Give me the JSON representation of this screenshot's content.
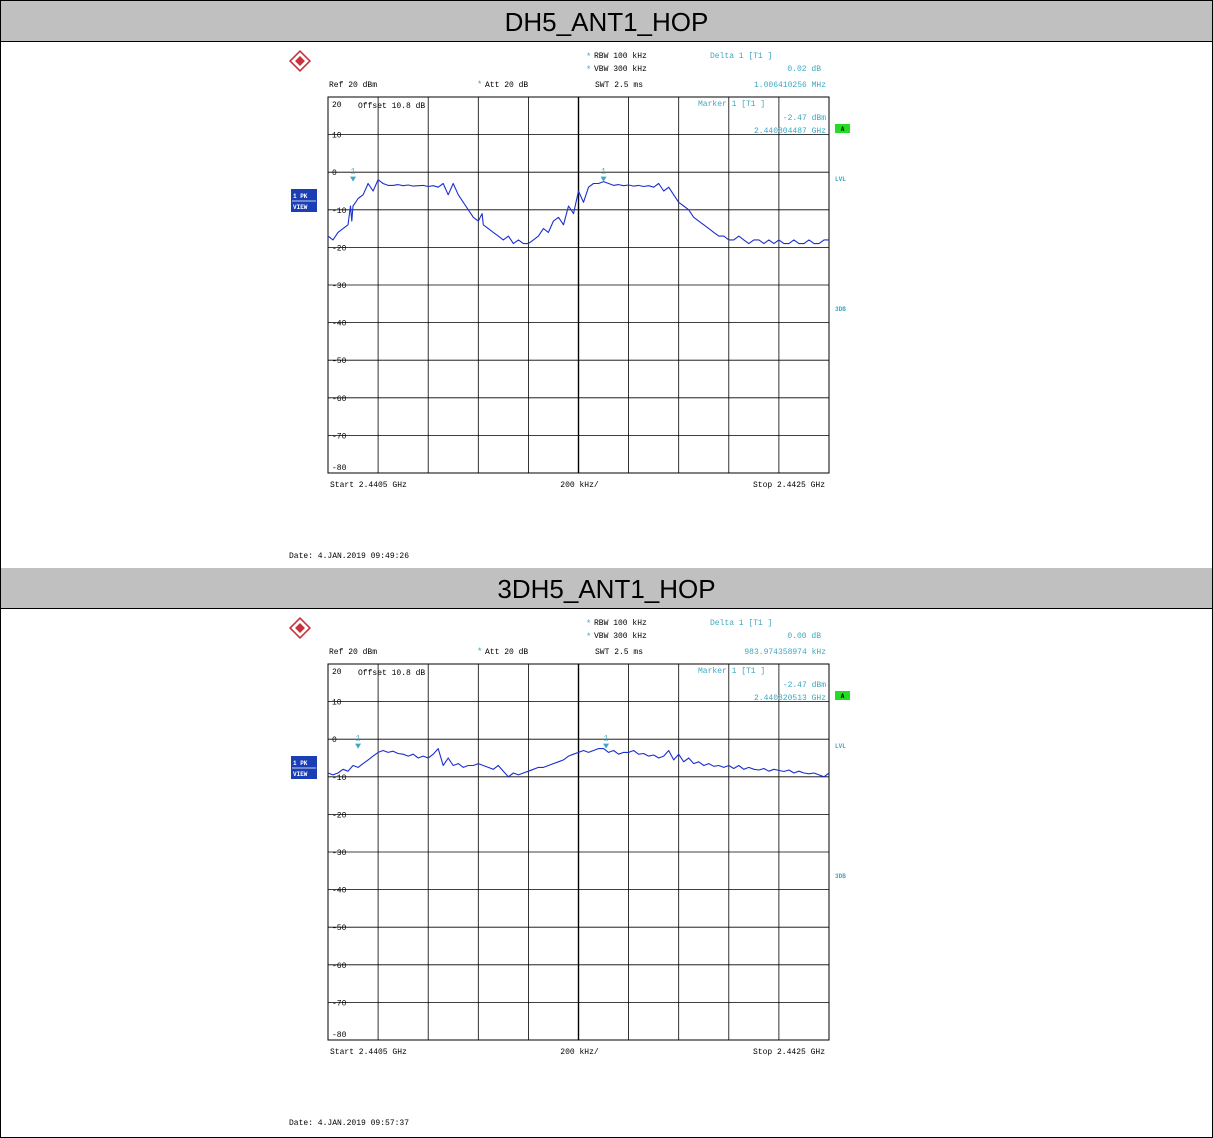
{
  "panels": [
    {
      "title": "DH5_ANT1_HOP",
      "settings": {
        "rbw": "RBW 100 kHz",
        "vbw": "VBW 300 kHz",
        "swt": "SWT 2.5 ms",
        "ref": "Ref  20 dBm",
        "att": "Att  20 dB",
        "offset": "Offset  10.8 dB",
        "trace_label_1": "1 PK",
        "trace_label_2": "VIEW",
        "badge_a": "A",
        "lvl": "LVL",
        "db3": "3DB",
        "star": "*"
      },
      "delta": {
        "label": "Delta 1 [T1 ]",
        "level": "0.02 dB",
        "freq": "1.006410256 MHz"
      },
      "marker": {
        "label": "Marker 1 [T1 ]",
        "level": "-2.47 dBm",
        "freq": "2.440804487 GHz"
      },
      "axis": {
        "start": "Start  2.4405 GHz",
        "span": "200 kHz/",
        "stop": "Stop  2.4425 GHz"
      },
      "y_ticks": [
        "20",
        "10",
        "0",
        "-10",
        "-20",
        "-30",
        "-40",
        "-50",
        "-60",
        "-70",
        "-80"
      ],
      "date": "Date: 4.JAN.2019  09:49:26",
      "chart_data": {
        "type": "line",
        "title": "DH5_ANT1_HOP",
        "xlabel": "",
        "ylabel": "",
        "xlim": [
          2.4405,
          2.4425
        ],
        "ylim": [
          -80,
          20
        ],
        "grid": true,
        "marker_labels": [
          "1",
          "1"
        ],
        "markers": [
          {
            "x": 2.4406,
            "y": -2.5
          },
          {
            "x": 2.4416,
            "y": -2.5
          }
        ],
        "series": [
          {
            "x": [
              2.4405,
              2.44052,
              2.44054,
              2.44056,
              2.44058,
              2.44059,
              2.440595,
              2.4406,
              2.44061,
              2.44062,
              2.44064,
              2.44066,
              2.44068,
              2.4407,
              2.44072,
              2.44074,
              2.44076,
              2.44078,
              2.4408,
              2.44082,
              2.44084,
              2.44086,
              2.44088,
              2.4409,
              2.44092,
              2.44094,
              2.44096,
              2.44098,
              2.441,
              2.44102,
              2.44104,
              2.44106,
              2.44108,
              2.4411,
              2.441115,
              2.44112,
              2.44114,
              2.44116,
              2.44118,
              2.4412,
              2.44122,
              2.44124,
              2.44126,
              2.44128,
              2.4413,
              2.44132,
              2.44134,
              2.44136,
              2.44138,
              2.4414,
              2.44142,
              2.44144,
              2.44146,
              2.44148,
              2.4415,
              2.44152,
              2.44154,
              2.44156,
              2.44158,
              2.4416,
              2.44162,
              2.44164,
              2.44166,
              2.44168,
              2.4417,
              2.44172,
              2.44174,
              2.44176,
              2.44178,
              2.4418,
              2.44182,
              2.44184,
              2.44186,
              2.44188,
              2.4419,
              2.44192,
              2.44194,
              2.44196,
              2.44198,
              2.442,
              2.44202,
              2.44204,
              2.44206,
              2.44208,
              2.4421,
              2.44212,
              2.44214,
              2.44216,
              2.44218,
              2.4422,
              2.44222,
              2.44224,
              2.44226,
              2.44228,
              2.4423,
              2.44232,
              2.44234,
              2.44236,
              2.44238,
              2.4424,
              2.44242,
              2.44244,
              2.44246,
              2.44248,
              2.4425
            ],
            "y": [
              -17,
              -18,
              -16,
              -15,
              -14,
              -9,
              -13,
              -9,
              -8,
              -7,
              -6,
              -3,
              -5,
              -2,
              -3,
              -3.5,
              -3.5,
              -3.3,
              -3.6,
              -3.4,
              -3.7,
              -3.6,
              -3.5,
              -3.8,
              -3.6,
              -4,
              -3,
              -6,
              -3,
              -6,
              -8,
              -10,
              -12,
              -13,
              -11,
              -14,
              -15,
              -16,
              -17,
              -18,
              -17,
              -19,
              -18,
              -19,
              -19,
              -18,
              -17,
              -15,
              -16,
              -13,
              -12,
              -14,
              -9,
              -11,
              -5,
              -8,
              -4,
              -3,
              -3,
              -2.5,
              -3,
              -3.5,
              -3.3,
              -3.6,
              -3.4,
              -3.7,
              -3.5,
              -3.8,
              -3.6,
              -4,
              -3,
              -5,
              -4,
              -6,
              -8,
              -9,
              -10,
              -12,
              -13,
              -14,
              -15,
              -16,
              -17,
              -17,
              -18,
              -18,
              -17,
              -18,
              -19,
              -18,
              -18,
              -19,
              -18,
              -19,
              -18,
              -19,
              -19,
              -18,
              -19,
              -19,
              -18,
              -19,
              -19,
              -18,
              -18
            ]
          }
        ]
      }
    },
    {
      "title": "3DH5_ANT1_HOP",
      "settings": {
        "rbw": "RBW 100 kHz",
        "vbw": "VBW 300 kHz",
        "swt": "SWT 2.5 ms",
        "ref": "Ref  20 dBm",
        "att": "Att  20 dB",
        "offset": "Offset  10.8 dB",
        "trace_label_1": "1 PK",
        "trace_label_2": "VIEW",
        "badge_a": "A",
        "lvl": "LVL",
        "db3": "3DB",
        "star": "*"
      },
      "delta": {
        "label": "Delta 1 [T1 ]",
        "level": "0.00 dB",
        "freq": "983.974358974 kHz"
      },
      "marker": {
        "label": "Marker 1 [T1 ]",
        "level": "-2.47 dBm",
        "freq": "2.440820513 GHz"
      },
      "axis": {
        "start": "Start  2.4405 GHz",
        "span": "200 kHz/",
        "stop": "Stop  2.4425 GHz"
      },
      "y_ticks": [
        "20",
        "10",
        "0",
        "-10",
        "-20",
        "-30",
        "-40",
        "-50",
        "-60",
        "-70",
        "-80"
      ],
      "date": "Date: 4.JAN.2019  09:57:37",
      "chart_data": {
        "type": "line",
        "title": "3DH5_ANT1_HOP",
        "xlabel": "",
        "ylabel": "",
        "xlim": [
          2.4405,
          2.4425
        ],
        "ylim": [
          -80,
          20
        ],
        "grid": true,
        "marker_labels": [
          "1",
          "1"
        ],
        "markers": [
          {
            "x": 2.44062,
            "y": -2.5
          },
          {
            "x": 2.44161,
            "y": -2.5
          }
        ],
        "series": [
          {
            "x": [
              2.4405,
              2.44052,
              2.44054,
              2.44056,
              2.44058,
              2.4406,
              2.44062,
              2.44064,
              2.44066,
              2.44068,
              2.4407,
              2.44072,
              2.44074,
              2.44076,
              2.44078,
              2.4408,
              2.44082,
              2.44084,
              2.44086,
              2.44088,
              2.4409,
              2.44092,
              2.44094,
              2.44096,
              2.44098,
              2.441,
              2.44102,
              2.44104,
              2.44106,
              2.44108,
              2.4411,
              2.44112,
              2.44114,
              2.44116,
              2.44118,
              2.4412,
              2.44122,
              2.44124,
              2.44126,
              2.44128,
              2.4413,
              2.44132,
              2.44134,
              2.44136,
              2.44138,
              2.4414,
              2.44142,
              2.44144,
              2.44146,
              2.44148,
              2.4415,
              2.44152,
              2.44154,
              2.44156,
              2.44158,
              2.4416,
              2.44162,
              2.44164,
              2.44166,
              2.44168,
              2.4417,
              2.44172,
              2.44174,
              2.44176,
              2.44178,
              2.4418,
              2.44182,
              2.44184,
              2.44186,
              2.44188,
              2.4419,
              2.44192,
              2.44194,
              2.44196,
              2.44198,
              2.442,
              2.44202,
              2.44204,
              2.44206,
              2.44208,
              2.4421,
              2.44212,
              2.44214,
              2.44216,
              2.44218,
              2.4422,
              2.44222,
              2.44224,
              2.44226,
              2.44228,
              2.4423,
              2.44232,
              2.44234,
              2.44236,
              2.44238,
              2.4424,
              2.44242,
              2.44244,
              2.44246,
              2.44248,
              2.4425
            ],
            "y": [
              -9,
              -9.5,
              -9,
              -8,
              -8.5,
              -7,
              -7.5,
              -6.5,
              -5.5,
              -4.5,
              -3.5,
              -3,
              -3.5,
              -3.2,
              -3.8,
              -4,
              -4.5,
              -4,
              -5,
              -4.5,
              -5,
              -4,
              -2.5,
              -7,
              -5,
              -7,
              -6.5,
              -7.5,
              -7,
              -7,
              -6.5,
              -7,
              -7.5,
              -8,
              -7,
              -8.5,
              -10,
              -9,
              -9.5,
              -9,
              -8.5,
              -8,
              -7.5,
              -7.5,
              -7,
              -6.5,
              -6,
              -5.5,
              -4.5,
              -4,
              -3.5,
              -3,
              -3.5,
              -3,
              -2.5,
              -2.5,
              -3.5,
              -3,
              -4,
              -3.5,
              -3.5,
              -3,
              -4,
              -3.8,
              -4.5,
              -4.2,
              -5,
              -4.5,
              -3,
              -5.5,
              -4,
              -6,
              -5,
              -6.5,
              -6,
              -7,
              -6.5,
              -7.2,
              -7,
              -7.5,
              -7,
              -7.8,
              -7,
              -8,
              -7.5,
              -8,
              -8.2,
              -7.8,
              -8.5,
              -8,
              -8.3,
              -8.6,
              -8.2,
              -9,
              -8.5,
              -9,
              -9.2,
              -9,
              -9.5,
              -10,
              -9
            ]
          }
        ]
      }
    }
  ]
}
